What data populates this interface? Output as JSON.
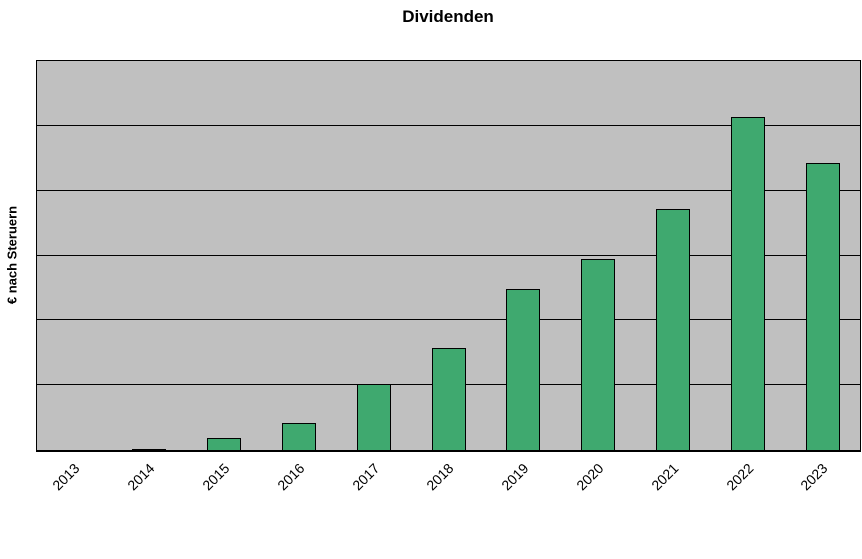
{
  "chart_data": {
    "type": "bar",
    "title": "Dividenden",
    "xlabel": "",
    "ylabel": "€ nach Steruern",
    "categories": [
      "2013",
      "2014",
      "2015",
      "2016",
      "2017",
      "2018",
      "2019",
      "2020",
      "2021",
      "2022",
      "2023"
    ],
    "values": [
      0,
      0.02,
      0.18,
      0.42,
      1.02,
      1.58,
      2.49,
      2.94,
      3.72,
      5.14,
      4.43
    ],
    "ylim": [
      0,
      6
    ],
    "grid_step": 1,
    "grid": true,
    "legend": false,
    "y_tick_labels_visible": false,
    "colors": {
      "bar_fill": "#3fa96f",
      "bar_border": "#000000",
      "plot_bg": "#c0c0c0",
      "grid_line": "#000000",
      "background": "#ffffff",
      "text": "#000000"
    }
  }
}
